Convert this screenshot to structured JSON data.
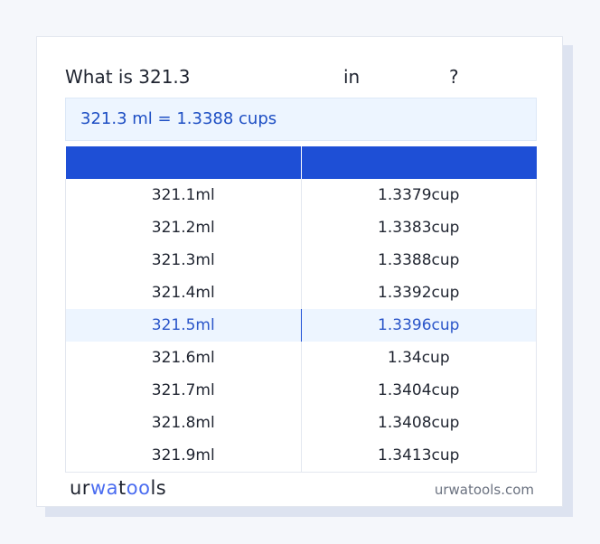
{
  "title": {
    "prefix": "What is 321.3",
    "middle": "in",
    "suffix": "?"
  },
  "result": "321.3 ml = 1.3388 cups",
  "table": {
    "headers": [
      "",
      ""
    ],
    "rows": [
      [
        "321.1ml",
        "1.3379cup"
      ],
      [
        "321.2ml",
        "1.3383cup"
      ],
      [
        "321.3ml",
        "1.3388cup"
      ],
      [
        "321.4ml",
        "1.3392cup"
      ],
      [
        "321.5ml",
        "1.3396cup"
      ],
      [
        "321.6ml",
        "1.34cup"
      ],
      [
        "321.7ml",
        "1.3404cup"
      ],
      [
        "321.8ml",
        "1.3408cup"
      ],
      [
        "321.9ml",
        "1.3413cup"
      ]
    ],
    "highlighted_row": 4
  },
  "footer": {
    "logo": "urwatools",
    "site": "urwatools.com"
  },
  "colors": {
    "accent": "#1e4fd6",
    "highlight_bg": "#edf5ff",
    "logo_blue": "#4a6cf0"
  }
}
